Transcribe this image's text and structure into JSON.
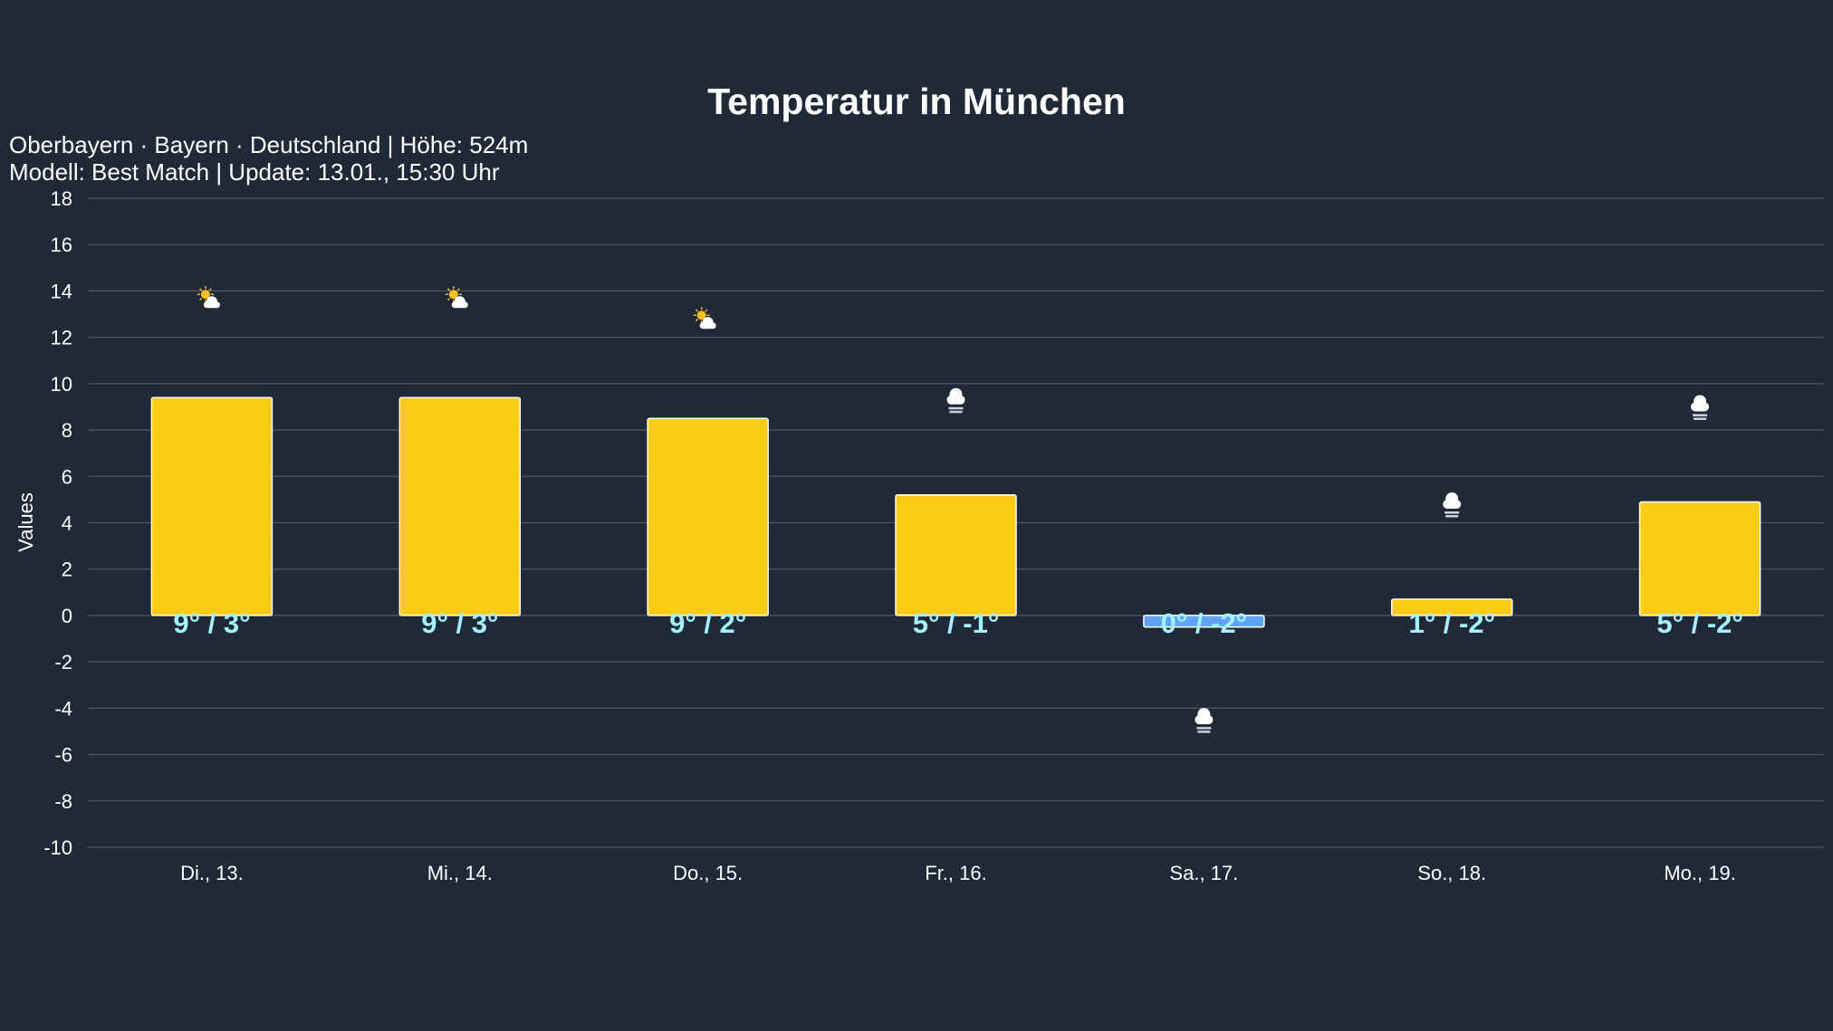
{
  "chart_data": {
    "type": "bar",
    "title": "Temperatur in München",
    "subtitle_lines": [
      "Oberbayern · Bayern · Deutschland | Höhe: 524m",
      "Modell: Best Match | Update: 13.01., 15:30 Uhr"
    ],
    "xlabel": "",
    "ylabel": "Values",
    "ylim": [
      -10,
      18
    ],
    "yticks": [
      18,
      16,
      14,
      12,
      10,
      8,
      6,
      4,
      2,
      0,
      -2,
      -4,
      -6,
      -8,
      -10
    ],
    "grid": true,
    "categories": [
      "Di., 13.",
      "Mi., 14.",
      "Do., 15.",
      "Fr., 16.",
      "Sa., 17.",
      "So., 18.",
      "Mo., 19."
    ],
    "values": [
      9.4,
      9.4,
      8.5,
      5.2,
      -0.5,
      0.7,
      4.9
    ],
    "data_labels": [
      "9° / 3°",
      "9° / 3°",
      "9° / 2°",
      "5° / -1°",
      "0° / -2°",
      "1° / -2°",
      "5° / -2°"
    ],
    "bar_colors": [
      "#facc15",
      "#facc15",
      "#facc15",
      "#facc15",
      "#60a5fa",
      "#facc15",
      "#facc15"
    ],
    "icons": [
      "partly-cloudy",
      "partly-cloudy",
      "partly-cloudy",
      "snow-cloud",
      "snow-cloud",
      "snow-cloud",
      "snow-cloud"
    ],
    "icon_y": [
      13.5,
      13.5,
      12.6,
      9.3,
      -4.5,
      4.8,
      9.0
    ]
  }
}
